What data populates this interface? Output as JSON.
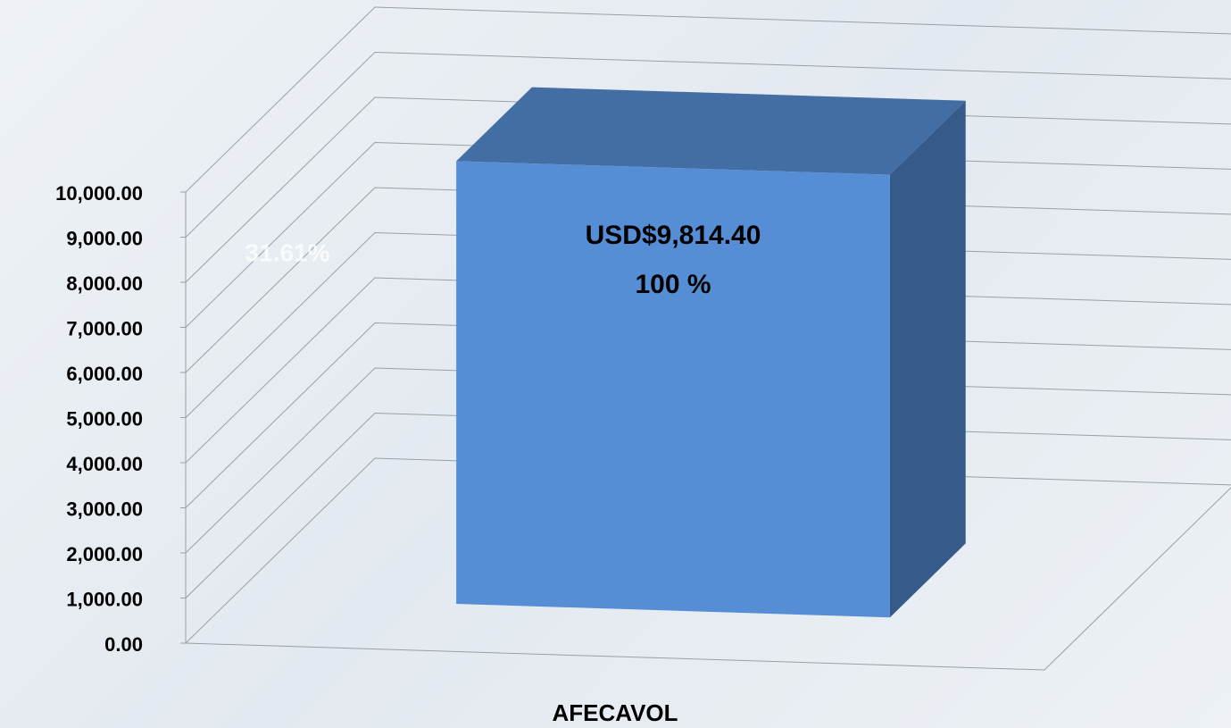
{
  "chart_data": {
    "type": "bar3d",
    "categories": [
      "AFECAVOL"
    ],
    "values": [
      9814.4
    ],
    "value_labels": [
      "USD$9,814.40"
    ],
    "color": "#558ed5",
    "annotations": [
      "100 %",
      "31.61%"
    ],
    "ylim": [
      0,
      10000
    ],
    "yticks": [
      {
        "value": 0,
        "label": "0.00"
      },
      {
        "value": 1000,
        "label": "1,000.00"
      },
      {
        "value": 2000,
        "label": "2,000.00"
      },
      {
        "value": 3000,
        "label": "3,000.00"
      },
      {
        "value": 4000,
        "label": "4,000.00"
      },
      {
        "value": 5000,
        "label": "5,000.00"
      },
      {
        "value": 6000,
        "label": "6,000.00"
      },
      {
        "value": 7000,
        "label": "7,000.00"
      },
      {
        "value": 8000,
        "label": "8,000.00"
      },
      {
        "value": 9000,
        "label": "9,000.00"
      },
      {
        "value": 10000,
        "label": "10,000.00"
      }
    ],
    "grid": true
  }
}
